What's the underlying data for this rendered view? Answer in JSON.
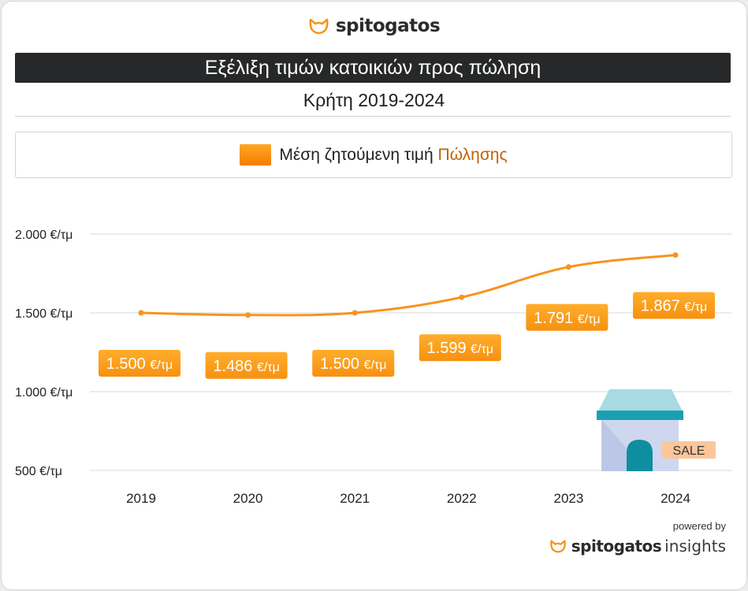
{
  "header": {
    "brand": "spitogatos",
    "title": "Εξέλιξη τιμών κατοικιών προς πώληση",
    "subtitle": "Κρήτη 2019-2024"
  },
  "legend": {
    "label_main": "Μέση ζητούμενη τιμή ",
    "label_highlight": "Πώλησης"
  },
  "colors": {
    "accent": "#f7941d",
    "label_bg": "#f99c1f",
    "title_bg": "#272829"
  },
  "chart_data": {
    "type": "line",
    "x": [
      "2019",
      "2020",
      "2021",
      "2022",
      "2023",
      "2024"
    ],
    "series": [
      {
        "values": [
          1500,
          1486,
          1500,
          1599,
          1791,
          1867
        ]
      }
    ],
    "data_labels": [
      {
        "num": "1.500",
        "unit": "€/τμ"
      },
      {
        "num": "1.486",
        "unit": "€/τμ"
      },
      {
        "num": "1.500",
        "unit": "€/τμ"
      },
      {
        "num": "1.599",
        "unit": "€/τμ"
      },
      {
        "num": "1.791",
        "unit": "€/τμ"
      },
      {
        "num": "1.867",
        "unit": "€/τμ"
      }
    ],
    "y_ticks": [
      {
        "value": 2000,
        "label": "2.000 €/τμ"
      },
      {
        "value": 1500,
        "label": "1.500 €/τμ"
      },
      {
        "value": 1000,
        "label": "1.000 €/τμ"
      },
      {
        "value": 500,
        "label": "500 €/τμ"
      }
    ],
    "ylim": [
      500,
      2000
    ],
    "grid": true,
    "decoration": {
      "badge": "SALE",
      "icon": "house-icon"
    }
  },
  "footer": {
    "powered_by": "powered by",
    "brand": "spitogatos",
    "suffix": "insights"
  }
}
